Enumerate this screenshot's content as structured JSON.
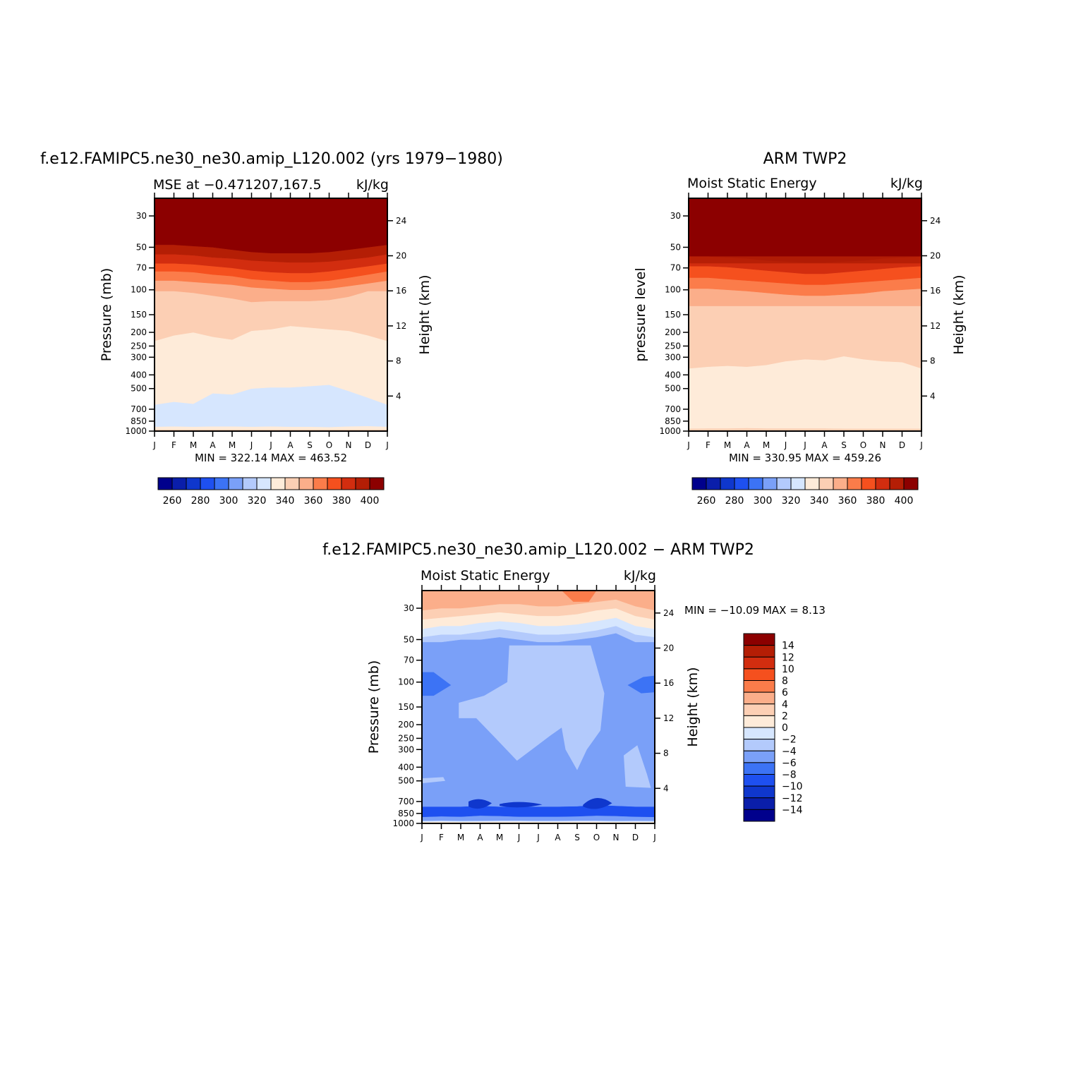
{
  "colors": {
    "mse_palette": [
      "#00008c",
      "#0a1eaa",
      "#0f37cd",
      "#1e50f0",
      "#3c73f5",
      "#7aa0f8",
      "#b3cafc",
      "#d6e6fe",
      "#feebd9",
      "#fccfb4",
      "#fbae8a",
      "#fb7c4a",
      "#f5501e",
      "#d22d0f",
      "#b41e05",
      "#8c0000"
    ],
    "diff_palette": [
      "#00008c",
      "#0a1eaa",
      "#0f37cd",
      "#1e50f0",
      "#3c73f5",
      "#7aa0f8",
      "#b3cafc",
      "#d6e6fe",
      "#feebd9",
      "#fccfb4",
      "#fbae8a",
      "#fb7c4a",
      "#f5501e",
      "#d22d0f",
      "#b41e05",
      "#8c0000"
    ]
  },
  "chart_data": [
    {
      "type": "heatmap",
      "title": "f.e12.FAMIPC5.ne30_ne30.amip_L120.002 (yrs 1979−1980)",
      "left_subtitle": "MSE at −0.471207,167.5",
      "right_subtitle": "kJ/kg",
      "ylabel": "Pressure (mb)",
      "ylabel_right": "Height (km)",
      "x_ticks": [
        "J",
        "F",
        "M",
        "A",
        "M",
        "J",
        "J",
        "A",
        "S",
        "O",
        "N",
        "D",
        "J"
      ],
      "y_ticks": [
        "30",
        "50",
        "70",
        "100",
        "150",
        "200",
        "250",
        "300",
        "400",
        "500",
        "700",
        "850",
        "1000"
      ],
      "y_ticks_right": [
        "24",
        "20",
        "16",
        "12",
        "8",
        "4"
      ],
      "minmax": "MIN = 322.14  MAX = 463.52",
      "colorbar_labels": [
        "260",
        "280",
        "300",
        "320",
        "340",
        "360",
        "380",
        "400"
      ],
      "levels_kJkg": [
        325,
        335,
        340,
        350,
        360,
        370,
        380,
        390,
        400
      ],
      "boundaries_mb": {
        "325_335": [
          930,
          925,
          930,
          925,
          925,
          930,
          925,
          930,
          930,
          935,
          925,
          920,
          930
        ],
        "335_340": [
          650,
          620,
          640,
          540,
          550,
          500,
          490,
          490,
          480,
          470,
          520,
          580,
          650
        ],
        "340_350": [
          230,
          210,
          200,
          215,
          225,
          195,
          190,
          180,
          185,
          190,
          195,
          210,
          230
        ],
        "350_360": [
          102,
          102,
          105,
          110,
          115,
          122,
          120,
          120,
          120,
          118,
          112,
          102,
          102
        ],
        "360_370": [
          86,
          86,
          88,
          90,
          92,
          96,
          98,
          100,
          100,
          98,
          94,
          90,
          86
        ],
        "370_380": [
          74,
          74,
          75,
          78,
          80,
          84,
          86,
          88,
          88,
          86,
          82,
          78,
          74
        ],
        "380_390": [
          65,
          65,
          66,
          68,
          70,
          73,
          75,
          76,
          76,
          74,
          71,
          68,
          65
        ],
        "390_400": [
          56,
          56,
          57,
          59,
          60,
          62,
          63,
          64,
          64,
          63,
          61,
          59,
          56
        ],
        "400_plus": [
          48,
          48,
          49,
          50,
          52,
          54,
          55,
          55,
          55,
          54,
          52,
          50,
          48
        ]
      }
    },
    {
      "type": "heatmap",
      "title": "ARM TWP2",
      "left_subtitle": "Moist Static Energy",
      "right_subtitle": "kJ/kg",
      "ylabel": "pressure level",
      "ylabel_right": "Height (km)",
      "x_ticks": [
        "J",
        "F",
        "M",
        "A",
        "M",
        "J",
        "J",
        "A",
        "S",
        "O",
        "N",
        "D",
        "J"
      ],
      "y_ticks": [
        "30",
        "50",
        "70",
        "100",
        "150",
        "200",
        "250",
        "300",
        "400",
        "500",
        "700",
        "850",
        "1000"
      ],
      "y_ticks_right": [
        "24",
        "20",
        "16",
        "12",
        "8",
        "4"
      ],
      "minmax": "MIN = 330.95  MAX = 459.26",
      "colorbar_labels": [
        "260",
        "280",
        "300",
        "320",
        "340",
        "360",
        "380",
        "400"
      ],
      "levels_kJkg": [
        340,
        350,
        360,
        370,
        380,
        390,
        400
      ],
      "boundaries_mb": {
        "340_350": [
          960,
          955,
          955,
          950,
          955,
          955,
          955,
          955,
          960,
          960,
          960,
          960,
          960
        ],
        "350_360": [
          360,
          350,
          345,
          350,
          340,
          320,
          310,
          315,
          295,
          310,
          320,
          325,
          360
        ],
        "360_370": [
          130,
          130,
          130,
          130,
          130,
          130,
          130,
          130,
          130,
          130,
          130,
          130,
          130
        ],
        "370_380": [
          98,
          98,
          100,
          102,
          105,
          108,
          110,
          110,
          108,
          106,
          102,
          100,
          98
        ],
        "380_390": [
          82,
          82,
          84,
          86,
          88,
          90,
          92,
          92,
          90,
          88,
          86,
          84,
          82
        ],
        "390_400": [
          68,
          68,
          69,
          71,
          73,
          75,
          77,
          77,
          75,
          73,
          71,
          69,
          68
        ],
        "400_plus": [
          58,
          58,
          59,
          60,
          62,
          63,
          64,
          64,
          63,
          62,
          60,
          59,
          58
        ]
      }
    },
    {
      "type": "heatmap",
      "title": "f.e12.FAMIPC5.ne30_ne30.amip_L120.002 − ARM TWP2",
      "left_subtitle": "Moist Static Energy",
      "right_subtitle": "kJ/kg",
      "ylabel": "Pressure (mb)",
      "ylabel_right": "Height (km)",
      "x_ticks": [
        "J",
        "F",
        "M",
        "A",
        "M",
        "J",
        "J",
        "A",
        "S",
        "O",
        "N",
        "D",
        "J"
      ],
      "y_ticks": [
        "30",
        "50",
        "70",
        "100",
        "150",
        "200",
        "250",
        "300",
        "400",
        "500",
        "700",
        "850",
        "1000"
      ],
      "y_ticks_right": [
        "24",
        "20",
        "16",
        "12",
        "8",
        "4"
      ],
      "minmax": "MIN = −10.09 MAX =    8.13",
      "colorbar_labels": [
        "14",
        "12",
        "10",
        "8",
        "6",
        "4",
        "2",
        "0",
        "−2",
        "−4",
        "−6",
        "−8",
        "−10",
        "−12",
        "−14"
      ],
      "colorbar_range": [
        -14,
        14
      ],
      "levels_kJkg": [
        -10,
        -8,
        -6,
        -4,
        -2,
        0,
        2,
        4
      ],
      "boundaries_mb": {
        "lower_0_to_minus2": [
          975,
          970,
          975,
          972,
          970,
          970,
          972,
          972,
          970,
          970,
          975,
          972,
          975
        ],
        "lower_minus2_to_minus4": [
          960,
          955,
          960,
          958,
          955,
          955,
          958,
          958,
          955,
          955,
          960,
          958,
          960
        ],
        "lower_minus4_to_minus8": [
          900,
          890,
          895,
          880,
          885,
          895,
          895,
          895,
          890,
          880,
          885,
          895,
          900
        ],
        "lower_minus8_band_top": [
          760,
          760,
          760,
          750,
          760,
          760,
          760,
          760,
          755,
          740,
          750,
          760,
          760
        ],
        "minus4_region_top": [
          52,
          52,
          50,
          50,
          48,
          50,
          52,
          52,
          50,
          48,
          45,
          52,
          52
        ],
        "minus4_to_minus2": [
          48,
          46,
          46,
          44,
          42,
          44,
          46,
          46,
          45,
          43,
          40,
          46,
          48
        ],
        "minus2_to_0": [
          42,
          40,
          40,
          38,
          37,
          38,
          40,
          40,
          39,
          37,
          35,
          40,
          42
        ],
        "0_to_2": [
          36,
          35,
          34,
          33,
          32,
          33,
          34,
          34,
          33,
          31,
          30,
          34,
          36
        ],
        "2_to_4": [
          31,
          30,
          30,
          29,
          28,
          28,
          29,
          29,
          28,
          27,
          26,
          29,
          31
        ],
        "4_to_6": [
          27,
          27,
          27,
          26,
          26,
          25,
          25,
          25,
          24,
          24,
          25,
          26,
          27
        ]
      }
    }
  ]
}
